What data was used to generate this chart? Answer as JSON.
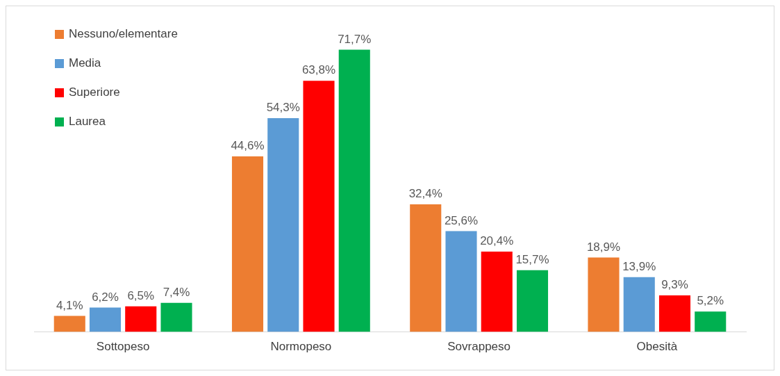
{
  "chart_data": {
    "type": "bar",
    "categories": [
      "Sottopeso",
      "Normopeso",
      "Sovrappeso",
      "Obesità"
    ],
    "series": [
      {
        "name": "Nessuno/elementare",
        "color": "#ed7d31",
        "values": [
          4.1,
          44.6,
          32.4,
          18.9
        ],
        "value_labels": [
          "4,1%",
          "44,6%",
          "32,4%",
          "18,9%"
        ]
      },
      {
        "name": "Media",
        "color": "#5b9bd5",
        "values": [
          6.2,
          54.3,
          25.6,
          13.9
        ],
        "value_labels": [
          "6,2%",
          "54,3%",
          "25,6%",
          "13,9%"
        ]
      },
      {
        "name": "Superiore",
        "color": "#ff0000",
        "values": [
          6.5,
          63.8,
          20.4,
          9.3
        ],
        "value_labels": [
          "6,5%",
          "63,8%",
          "20,4%",
          "9,3%"
        ]
      },
      {
        "name": "Laurea",
        "color": "#00b050",
        "values": [
          7.4,
          71.7,
          15.7,
          5.2
        ],
        "value_labels": [
          "7,4%",
          "71,7%",
          "15,7%",
          "5,2%"
        ]
      }
    ],
    "legend": "top left",
    "grid": false
  }
}
